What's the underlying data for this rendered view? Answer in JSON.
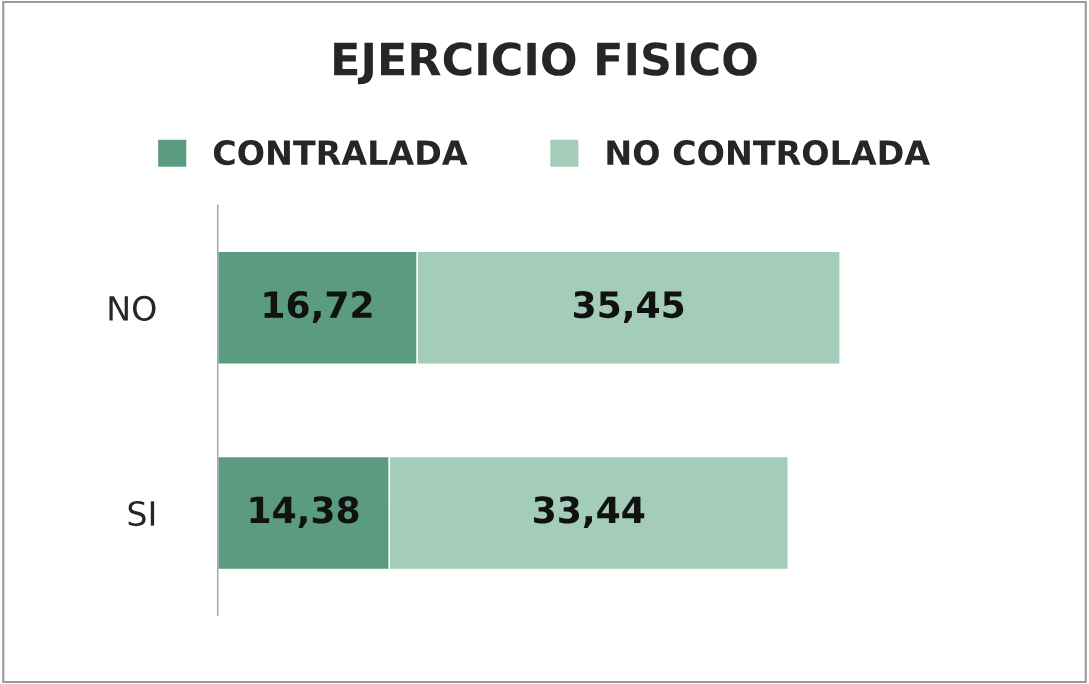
{
  "chart_data": {
    "type": "bar",
    "title": "EJERCICIO FISICO",
    "orientation": "horizontal",
    "stacked": true,
    "categories": [
      "NO",
      "SI"
    ],
    "series": [
      {
        "name": "CONTRALADA",
        "color": "#5b9b80",
        "values": [
          16.72,
          14.38
        ],
        "value_labels": [
          "16,72",
          "14,38"
        ]
      },
      {
        "name": "NO CONTROLADA",
        "color": "#a3cdb9",
        "values": [
          35.45,
          33.44
        ],
        "value_labels": [
          "35,45",
          "33,44"
        ]
      }
    ],
    "legend": "top",
    "tick_labels": "y",
    "grid": false
  }
}
